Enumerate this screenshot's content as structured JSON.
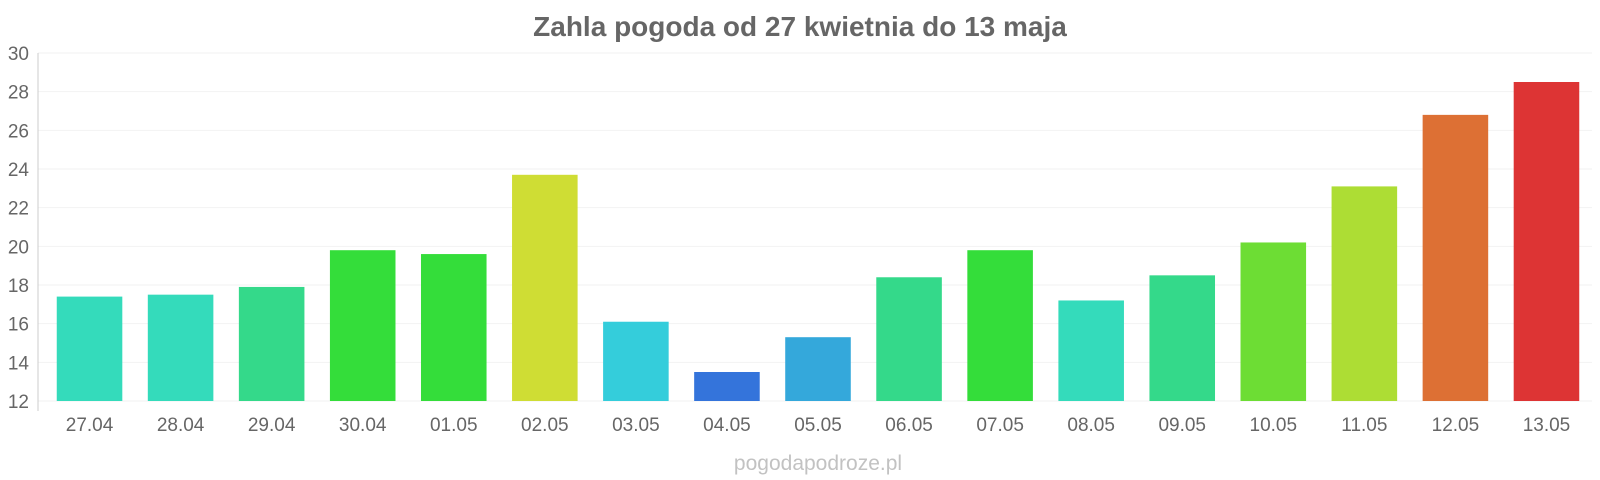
{
  "footer": "pogodapodroze.pl",
  "chart_data": {
    "type": "bar",
    "title": "Zahla pogoda od 27 kwietnia do 13 maja",
    "xlabel": "",
    "ylabel": "",
    "ylim": [
      12,
      30
    ],
    "y_ticks": [
      "12",
      "14",
      "16",
      "18",
      "20",
      "22",
      "24",
      "26",
      "28",
      "30"
    ],
    "grid": true,
    "legend": "none",
    "categories": [
      "27.04",
      "28.04",
      "29.04",
      "30.04",
      "01.05",
      "02.05",
      "03.05",
      "04.05",
      "05.05",
      "06.05",
      "07.05",
      "08.05",
      "09.05",
      "10.05",
      "11.05",
      "12.05",
      "13.05"
    ],
    "values": [
      17.4,
      17.5,
      17.9,
      19.8,
      19.6,
      23.7,
      16.1,
      13.5,
      15.3,
      18.4,
      19.8,
      17.2,
      18.5,
      20.2,
      23.1,
      26.8,
      28.5
    ],
    "colors": [
      "#34dbbb",
      "#34dbbb",
      "#34d98a",
      "#34dd3a",
      "#34dd3a",
      "#cfdd34",
      "#34cddb",
      "#3474db",
      "#34a8db",
      "#34d98a",
      "#34dd3a",
      "#34dbbb",
      "#34d98a",
      "#6ddd34",
      "#addd34",
      "#dd7034",
      "#dd3434"
    ]
  }
}
